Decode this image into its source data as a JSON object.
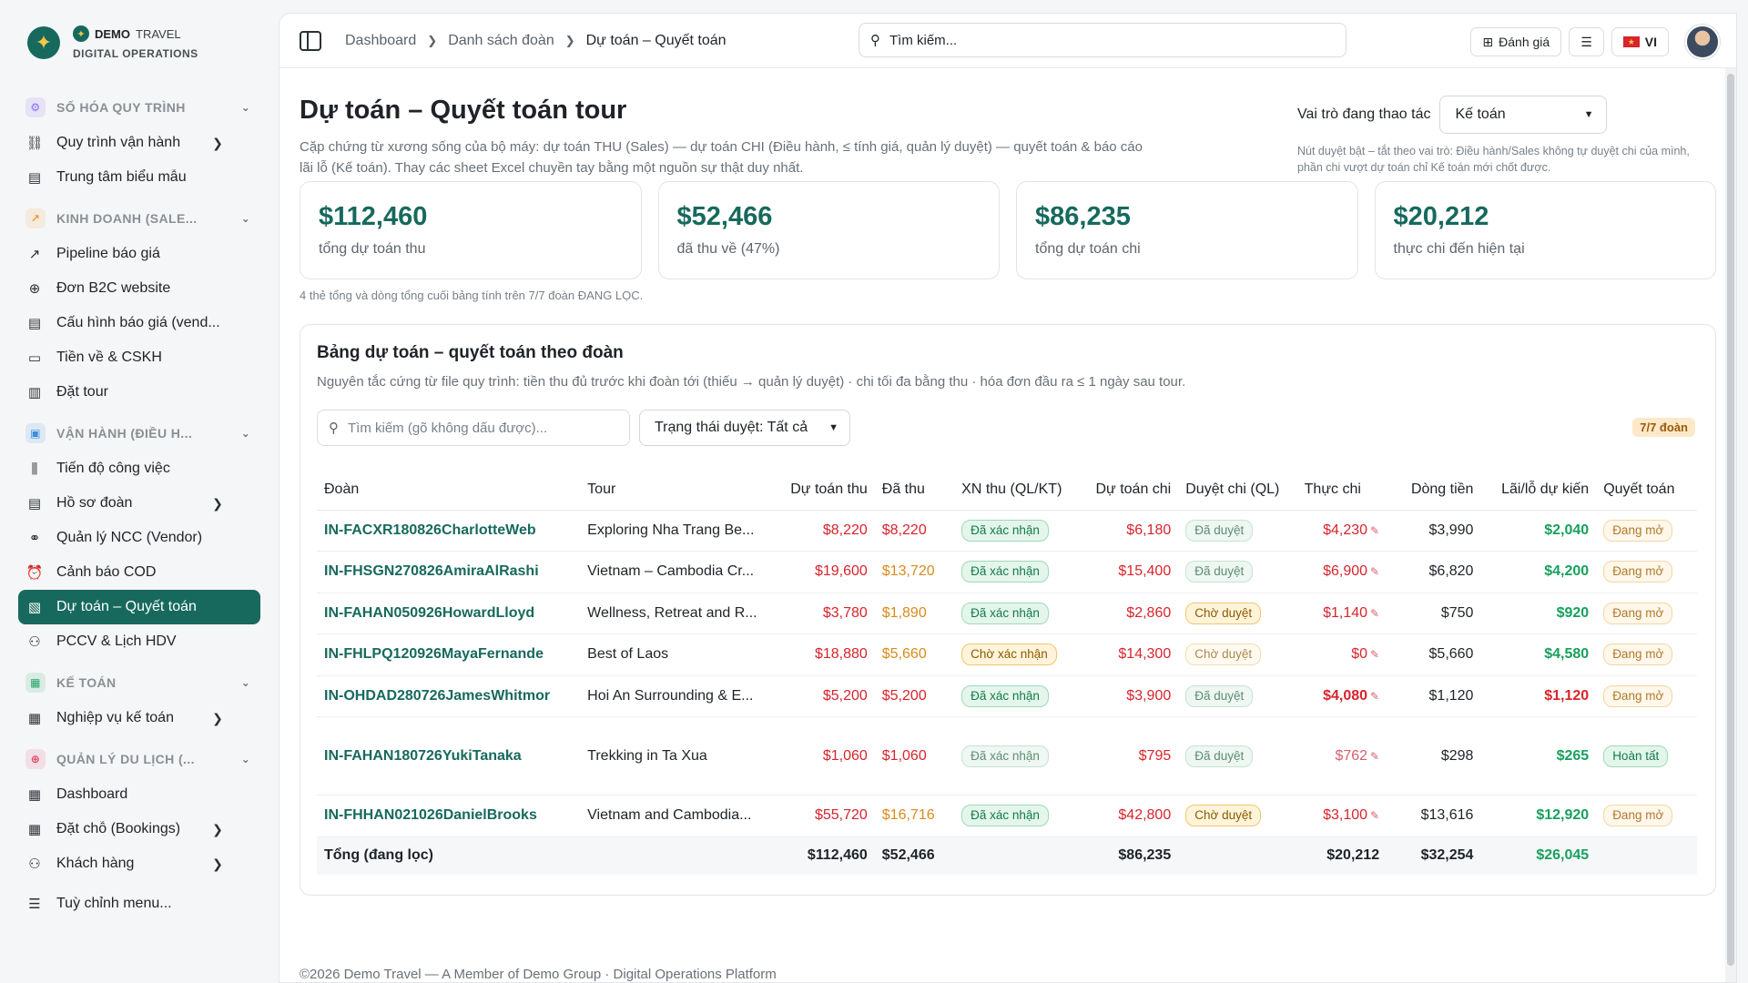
{
  "brand": {
    "name_bold": "DEMO",
    "name_rest": "TRAVEL",
    "sub": "DIGITAL OPERATIONS"
  },
  "sidebar": {
    "sections": [
      {
        "label": "SỐ HÓA QUY TRÌNH",
        "icon": "process-icon",
        "color": "#8b6cf0",
        "items": [
          {
            "label": "Quy trình vận hành",
            "icon": "workflow-icon",
            "arrow": true
          },
          {
            "label": "Trung tâm biểu mẫu",
            "icon": "document-icon",
            "arrow": false
          }
        ]
      },
      {
        "label": "KINH DOANH (SALE...",
        "icon": "trend-up-icon",
        "color": "#f29a3a",
        "items": [
          {
            "label": "Pipeline báo giá",
            "icon": "trend-up-icon",
            "arrow": false
          },
          {
            "label": "Đơn B2C website",
            "icon": "globe-icon",
            "arrow": false
          },
          {
            "label": "Cấu hình báo giá (vend...",
            "icon": "document-icon",
            "arrow": false
          },
          {
            "label": "Tiền về & CSKH",
            "icon": "wallet-icon",
            "arrow": false
          },
          {
            "label": "Đặt tour",
            "icon": "clipboard-icon",
            "arrow": false
          }
        ]
      },
      {
        "label": "VẬN HÀNH (ĐIỀU H...",
        "icon": "briefcase-icon",
        "color": "#3b8fe0",
        "items": [
          {
            "label": "Tiến độ công việc",
            "icon": "progress-bars-icon",
            "arrow": false
          },
          {
            "label": "Hồ sơ đoàn",
            "icon": "document-icon",
            "arrow": true
          },
          {
            "label": "Quản lý NCC (Vendor)",
            "icon": "handshake-icon",
            "arrow": false
          },
          {
            "label": "Cảnh báo COD",
            "icon": "alarm-icon",
            "arrow": false
          },
          {
            "label": "Dự toán – Quyết toán",
            "icon": "budget-icon",
            "arrow": false,
            "active": true
          },
          {
            "label": "PCCV & Lịch HDV",
            "icon": "user-icon",
            "arrow": false
          }
        ]
      },
      {
        "label": "KẾ TOÁN",
        "icon": "calculator-icon",
        "color": "#27a86a",
        "items": [
          {
            "label": "Nghiệp vụ kế toán",
            "icon": "calculator-icon",
            "arrow": true
          }
        ]
      },
      {
        "label": "QUẢN LÝ DU LỊCH (...",
        "icon": "globe-icon",
        "color": "#e0456b",
        "items": [
          {
            "label": "Dashboard",
            "icon": "grid-icon",
            "arrow": false
          },
          {
            "label": "Đặt chỗ (Bookings)",
            "icon": "calendar-icon",
            "arrow": true
          },
          {
            "label": "Khách hàng",
            "icon": "users-icon",
            "arrow": true
          }
        ]
      }
    ],
    "customize": {
      "label": "Tuỳ chỉnh menu...",
      "icon": "sliders-icon"
    }
  },
  "topbar": {
    "breadcrumbs": [
      "Dashboard",
      "Danh sách đoàn",
      "Dự toán – Quyết toán"
    ],
    "search_placeholder": "Tìm kiếm...",
    "feedback_label": "Đánh giá",
    "lang_label": "VI"
  },
  "page": {
    "title": "Dự toán – Quyết toán tour",
    "desc": "Cặp chứng từ xương sống của bộ máy: dự toán THU (Sales) — dự toán CHI (Điều hành, ≤ tính giá, quản lý duyệt) — quyết toán & báo cáo lãi lỗ (Kế toán). Thay các sheet Excel chuyền tay bằng một nguồn sự thật duy nhất.",
    "role_label": "Vai trò đang thao tác",
    "role_value": "Kế toán",
    "role_note": "Nút duyệt bật – tắt theo vai trò: Điều hành/Sales không tự duyệt chi của mình, phần chi vượt dự toán chỉ Kế toán mới chốt được."
  },
  "kpis": [
    {
      "value": "$112,460",
      "caption": "tổng dự toán thu"
    },
    {
      "value": "$52,466",
      "caption": "đã thu về (47%)"
    },
    {
      "value": "$86,235",
      "caption": "tổng dự toán chi"
    },
    {
      "value": "$20,212",
      "caption": "thực chi đến hiện tại"
    }
  ],
  "kpi_note": "4 thẻ tổng và dòng tổng cuối bảng tính trên 7/7 đoàn ĐANG LỌC.",
  "table_card": {
    "title": "Bảng dự toán – quyết toán theo đoàn",
    "desc": "Nguyên tắc cứng từ file quy trình: tiền thu đủ trước khi đoàn tới (thiếu → quản lý duyệt) · chi tối đa bằng thu · hóa đơn đầu ra ≤ 1 ngày sau tour.",
    "search_placeholder": "Tìm kiếm (gõ không dấu được)...",
    "status_filter": "Trạng thái duyệt: Tất cả",
    "count_badge": "7/7 đoàn",
    "columns": [
      "Đoàn",
      "Tour",
      "Dự toán thu",
      "Đã thu",
      "XN thu (QL/KT)",
      "Dự toán chi",
      "Duyệt chi (QL)",
      "Thực chi",
      "Dòng tiền",
      "Lãi/lỗ dự kiến",
      "Quyết toán"
    ],
    "rows": [
      {
        "code": "IN-FACXR180826CharlotteWeb",
        "tour": "Exploring Nha Trang Be...",
        "rev_plan": "$8,220",
        "collected": "$8,220",
        "collected_tone": "red",
        "xn_thu": "Đã xác nhận",
        "xn_thu_tone": "ok",
        "cost_plan": "$6,180",
        "duyet_chi": "Đã duyệt",
        "duyet_chi_tone": "okm",
        "actual": "$4,230",
        "actual_tone": "red",
        "cashflow": "$3,990",
        "pnl": "$2,040",
        "settle": "Đang mở",
        "settle_tone": "open"
      },
      {
        "code": "IN-FHSGN270826AmiraAlRashi",
        "tour": "Vietnam – Cambodia Cr...",
        "rev_plan": "$19,600",
        "collected": "$13,720",
        "collected_tone": "orange",
        "xn_thu": "Đã xác nhận",
        "xn_thu_tone": "ok",
        "cost_plan": "$15,400",
        "duyet_chi": "Đã duyệt",
        "duyet_chi_tone": "okm",
        "actual": "$6,900",
        "actual_tone": "red",
        "cashflow": "$6,820",
        "pnl": "$4,200",
        "settle": "Đang mở",
        "settle_tone": "open"
      },
      {
        "code": "IN-FAHAN050926HowardLloyd",
        "tour": "Wellness, Retreat and R...",
        "rev_plan": "$3,780",
        "collected": "$1,890",
        "collected_tone": "orange",
        "xn_thu": "Đã xác nhận",
        "xn_thu_tone": "ok",
        "cost_plan": "$2,860",
        "duyet_chi": "Chờ duyệt",
        "duyet_chi_tone": "wait",
        "actual": "$1,140",
        "actual_tone": "red",
        "cashflow": "$750",
        "pnl": "$920",
        "settle": "Đang mở",
        "settle_tone": "open"
      },
      {
        "code": "IN-FHLPQ120926MayaFernande",
        "tour": "Best of Laos",
        "rev_plan": "$18,880",
        "collected": "$5,660",
        "collected_tone": "orange",
        "xn_thu": "Chờ xác nhận",
        "xn_thu_tone": "wait",
        "cost_plan": "$14,300",
        "duyet_chi": "Chờ duyệt",
        "duyet_chi_tone": "waitm",
        "actual": "$0",
        "actual_tone": "red",
        "cashflow": "$5,660",
        "pnl": "$4,580",
        "settle": "Đang mở",
        "settle_tone": "open"
      },
      {
        "code": "IN-OHDAD280726JamesWhitmor",
        "tour": "Hoi An Surrounding & E...",
        "rev_plan": "$5,200",
        "collected": "$5,200",
        "collected_tone": "red",
        "xn_thu": "Đã xác nhận",
        "xn_thu_tone": "ok",
        "cost_plan": "$3,900",
        "duyet_chi": "Đã duyệt",
        "duyet_chi_tone": "okm",
        "actual": "$4,080",
        "actual_tone": "red bold",
        "cashflow": "$1,120",
        "pnl": "$1,120",
        "pnl_tone": "red",
        "settle": "Đang mở",
        "settle_tone": "open"
      },
      {
        "code": "IN-FAHAN180726YukiTanaka",
        "tour": "Trekking in Ta Xua",
        "rev_plan": "$1,060",
        "collected": "$1,060",
        "collected_tone": "red",
        "xn_thu": "Đã xác nhận",
        "xn_thu_tone": "okm",
        "cost_plan": "$795",
        "duyet_chi": "Đã duyệt",
        "duyet_chi_tone": "okm",
        "actual": "$762",
        "actual_tone": "muted-red",
        "cashflow": "$298",
        "pnl": "$265",
        "settle": "Hoàn tất",
        "settle_tone": "done",
        "tall": true
      },
      {
        "code": "IN-FHHAN021026DanielBrooks",
        "tour": "Vietnam and Cambodia...",
        "rev_plan": "$55,720",
        "collected": "$16,716",
        "collected_tone": "orange",
        "xn_thu": "Đã xác nhận",
        "xn_thu_tone": "ok",
        "cost_plan": "$42,800",
        "duyet_chi": "Chờ duyệt",
        "duyet_chi_tone": "wait",
        "actual": "$3,100",
        "actual_tone": "red",
        "cashflow": "$13,616",
        "pnl": "$12,920",
        "settle": "Đang mở",
        "settle_tone": "open"
      }
    ],
    "total": {
      "label": "Tổng (đang lọc)",
      "rev_plan": "$112,460",
      "collected": "$52,466",
      "cost_plan": "$86,235",
      "actual": "$20,212",
      "cashflow": "$32,254",
      "pnl": "$26,045"
    }
  },
  "footer": "©2026 Demo Travel — A Member of Demo Group · Digital Operations Platform",
  "colors": {
    "brand": "#17695d",
    "danger": "#d8242c",
    "warning": "#d98a1a",
    "success": "#17a05d"
  }
}
